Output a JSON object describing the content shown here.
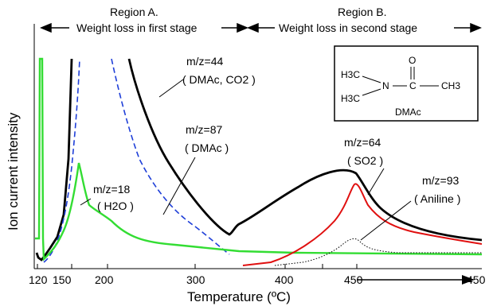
{
  "chart_data": {
    "type": "line",
    "xlabel": "Temperature (ºC)",
    "ylabel": "Ion current intensity",
    "x_tick_labels": [
      "120",
      "150",
      "200",
      "300",
      "400",
      "450",
      "450"
    ],
    "regions": [
      {
        "title": "Region A.",
        "subtitle": "Weight loss in first stage"
      },
      {
        "title": "Region B.",
        "subtitle": "Weight loss in second stage"
      }
    ],
    "series": [
      {
        "name": "m/z=44",
        "species": "( DMAc, CO2 )",
        "color": "#000000",
        "style": "solid"
      },
      {
        "name": "m/z=87",
        "species": "( DMAc )",
        "color": "#1f3fd8",
        "style": "dashed"
      },
      {
        "name": "m/z=18",
        "species": "( H2O )",
        "color": "#33dd33",
        "style": "solid"
      },
      {
        "name": "m/z=64",
        "species": "( SO2 )",
        "color": "#e01010",
        "style": "solid"
      },
      {
        "name": "m/z=93",
        "species": "( Aniline )",
        "color": "#000000",
        "style": "dotted"
      }
    ],
    "inset": {
      "h3c_top": "H3C",
      "h3c_bottom": "H3C",
      "n": "N",
      "c": "C",
      "o": "O",
      "ch3": "CH3",
      "caption": "DMAc"
    }
  }
}
